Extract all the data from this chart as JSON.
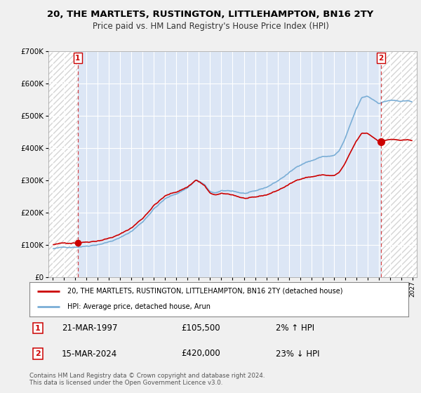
{
  "title": "20, THE MARTLETS, RUSTINGTON, LITTLEHAMPTON, BN16 2TY",
  "subtitle": "Price paid vs. HM Land Registry's House Price Index (HPI)",
  "fig_bg_color": "#f0f0f0",
  "plot_bg_color": "#dce6f5",
  "hatch_bg_color": "#e8e8e8",
  "legend_label_red": "20, THE MARTLETS, RUSTINGTON, LITTLEHAMPTON, BN16 2TY (detached house)",
  "legend_label_blue": "HPI: Average price, detached house, Arun",
  "point1_label": "1",
  "point1_date": "21-MAR-1997",
  "point1_price": "£105,500",
  "point1_hpi": "2% ↑ HPI",
  "point2_label": "2",
  "point2_date": "15-MAR-2024",
  "point2_price": "£420,000",
  "point2_hpi": "23% ↓ HPI",
  "copyright": "Contains HM Land Registry data © Crown copyright and database right 2024.\nThis data is licensed under the Open Government Licence v3.0.",
  "ylim": [
    0,
    700000
  ],
  "yticks": [
    0,
    100000,
    200000,
    300000,
    400000,
    500000,
    600000,
    700000
  ],
  "xlim_start": 1994.6,
  "xlim_end": 2027.4,
  "point1_x": 1997.22,
  "point1_y": 105500,
  "point2_x": 2024.22,
  "point2_y": 420000,
  "red_color": "#cc0000",
  "blue_color": "#7aaed6"
}
